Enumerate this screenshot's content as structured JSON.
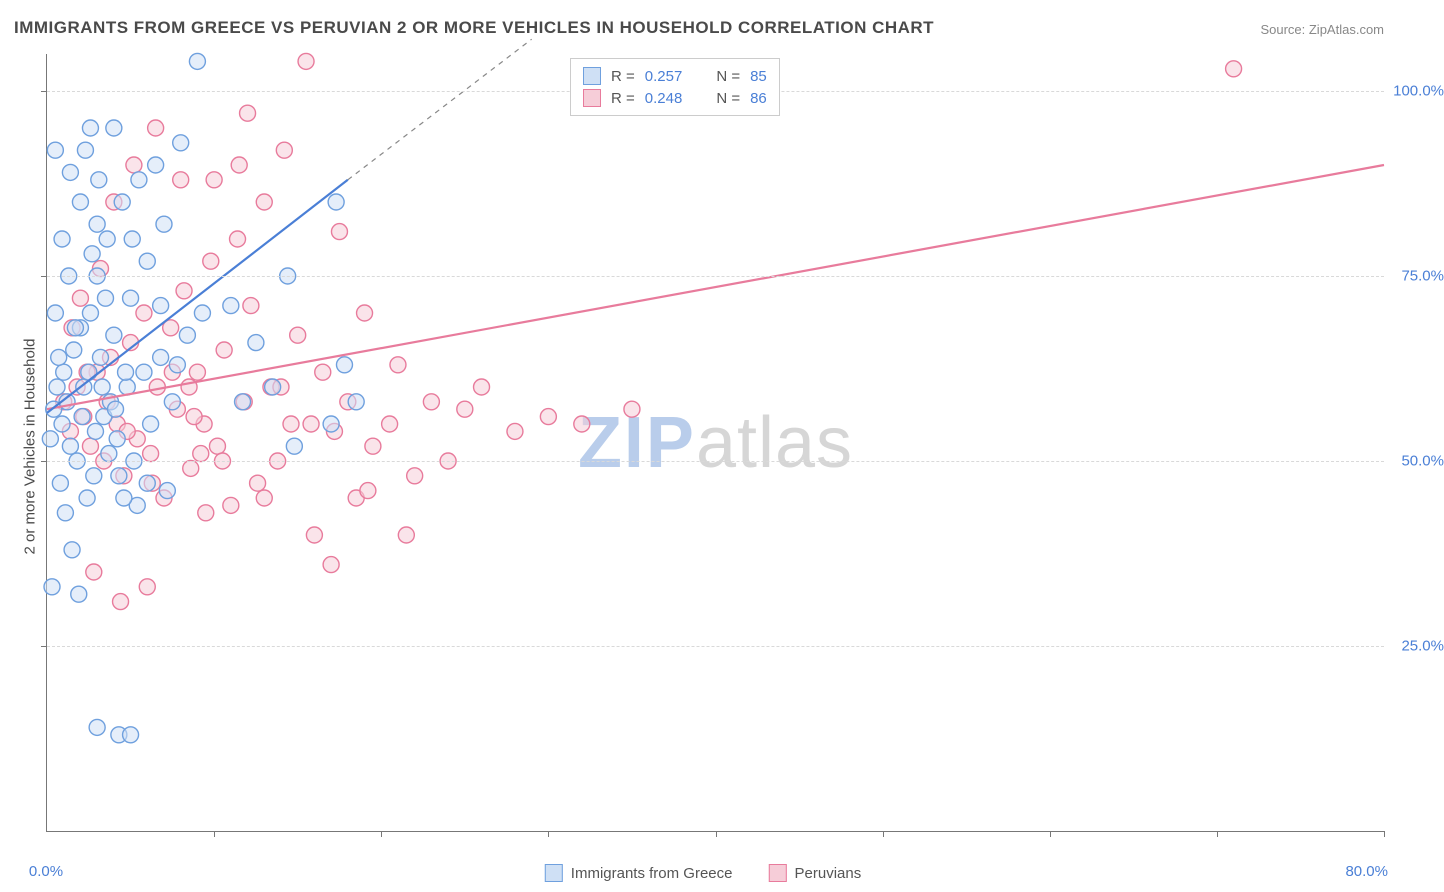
{
  "title": "IMMIGRANTS FROM GREECE VS PERUVIAN 2 OR MORE VEHICLES IN HOUSEHOLD CORRELATION CHART",
  "source": "Source: ZipAtlas.com",
  "yaxis_title": "2 or more Vehicles in Household",
  "watermark_zip": "ZIP",
  "watermark_atlas": "atlas",
  "chart": {
    "type": "scatter-correlation",
    "xlim": [
      0,
      80
    ],
    "ylim": [
      0,
      105
    ],
    "x_tick_positions": [
      0,
      10,
      20,
      30,
      40,
      50,
      60,
      70,
      80
    ],
    "y_gridlines": [
      25,
      50,
      75,
      100
    ],
    "x_gridlines": [],
    "y_tick_labels": [
      "25.0%",
      "50.0%",
      "75.0%",
      "100.0%"
    ],
    "x_label_min": "0.0%",
    "x_label_max": "80.0%",
    "background_color": "#ffffff",
    "grid_color": "#d9d9d9",
    "axis_color": "#777777",
    "label_color": "#4a7fd6",
    "title_color": "#4a4a4a",
    "title_fontsize": 17,
    "label_fontsize": 15,
    "marker_radius": 8,
    "marker_stroke_width": 1.4,
    "trend_line_width": 2.2,
    "series": {
      "greece": {
        "label": "Immigrants from Greece",
        "fill": "#cfe0f5",
        "fill_opacity": 0.55,
        "stroke": "#6fa0de",
        "R": "0.257",
        "N": "85",
        "trend": {
          "x1": 0,
          "y1": 56.5,
          "x2": 18,
          "y2": 88,
          "dash_to_x": 29,
          "dash_to_y": 107
        },
        "points": [
          [
            0.4,
            57
          ],
          [
            0.6,
            60
          ],
          [
            0.9,
            55
          ],
          [
            1.0,
            62
          ],
          [
            1.2,
            58
          ],
          [
            1.4,
            52
          ],
          [
            1.6,
            65
          ],
          [
            1.8,
            50
          ],
          [
            2.0,
            68
          ],
          [
            2.2,
            60
          ],
          [
            2.4,
            45
          ],
          [
            2.6,
            70
          ],
          [
            2.8,
            48
          ],
          [
            3.0,
            75
          ],
          [
            3.2,
            64
          ],
          [
            3.4,
            56
          ],
          [
            3.6,
            80
          ],
          [
            3.8,
            58
          ],
          [
            4.0,
            67
          ],
          [
            4.2,
            53
          ],
          [
            4.5,
            85
          ],
          [
            4.8,
            60
          ],
          [
            5.0,
            72
          ],
          [
            5.2,
            50
          ],
          [
            5.5,
            88
          ],
          [
            5.8,
            62
          ],
          [
            6.0,
            77
          ],
          [
            6.2,
            55
          ],
          [
            6.5,
            90
          ],
          [
            6.8,
            64
          ],
          [
            7.0,
            82
          ],
          [
            7.5,
            58
          ],
          [
            8.0,
            93
          ],
          [
            8.4,
            67
          ],
          [
            9.0,
            104
          ],
          [
            9.3,
            70
          ],
          [
            0.8,
            47
          ],
          [
            1.1,
            43
          ],
          [
            1.5,
            38
          ],
          [
            2.0,
            85
          ],
          [
            2.3,
            92
          ],
          [
            2.7,
            78
          ],
          [
            3.1,
            88
          ],
          [
            3.5,
            72
          ],
          [
            4.0,
            95
          ],
          [
            4.3,
            48
          ],
          [
            4.7,
            62
          ],
          [
            5.1,
            80
          ],
          [
            5.4,
            44
          ],
          [
            0.5,
            70
          ],
          [
            0.7,
            64
          ],
          [
            1.3,
            75
          ],
          [
            1.7,
            68
          ],
          [
            2.1,
            56
          ],
          [
            2.5,
            62
          ],
          [
            2.9,
            54
          ],
          [
            3.3,
            60
          ],
          [
            3.7,
            51
          ],
          [
            4.1,
            57
          ],
          [
            4.6,
            45
          ],
          [
            0.3,
            33
          ],
          [
            1.9,
            32
          ],
          [
            3.0,
            14
          ],
          [
            4.3,
            13
          ],
          [
            5.0,
            13
          ],
          [
            6.0,
            47
          ],
          [
            6.8,
            71
          ],
          [
            7.2,
            46
          ],
          [
            7.8,
            63
          ],
          [
            0.2,
            53
          ],
          [
            0.9,
            80
          ],
          [
            1.4,
            89
          ],
          [
            2.6,
            95
          ],
          [
            3.0,
            82
          ],
          [
            0.5,
            92
          ],
          [
            11.0,
            71
          ],
          [
            11.7,
            58
          ],
          [
            12.5,
            66
          ],
          [
            13.5,
            60
          ],
          [
            14.4,
            75
          ],
          [
            14.8,
            52
          ],
          [
            17.0,
            55
          ],
          [
            17.8,
            63
          ],
          [
            17.3,
            85
          ],
          [
            18.5,
            58
          ]
        ]
      },
      "peruvian": {
        "label": "Peruvians",
        "fill": "#f6cdd8",
        "fill_opacity": 0.55,
        "stroke": "#e87b9c",
        "R": "0.248",
        "N": "86",
        "trend": {
          "x1": 0,
          "y1": 57,
          "x2": 80,
          "y2": 90
        },
        "points": [
          [
            1.0,
            58
          ],
          [
            1.4,
            54
          ],
          [
            1.8,
            60
          ],
          [
            2.2,
            56
          ],
          [
            2.6,
            52
          ],
          [
            3.0,
            62
          ],
          [
            3.4,
            50
          ],
          [
            3.8,
            64
          ],
          [
            4.2,
            55
          ],
          [
            4.6,
            48
          ],
          [
            5.0,
            66
          ],
          [
            5.4,
            53
          ],
          [
            5.8,
            70
          ],
          [
            6.2,
            51
          ],
          [
            6.6,
            60
          ],
          [
            7.0,
            45
          ],
          [
            7.4,
            68
          ],
          [
            7.8,
            57
          ],
          [
            8.2,
            73
          ],
          [
            8.6,
            49
          ],
          [
            9.0,
            62
          ],
          [
            9.4,
            55
          ],
          [
            9.8,
            77
          ],
          [
            10.2,
            52
          ],
          [
            10.6,
            65
          ],
          [
            11.0,
            44
          ],
          [
            11.4,
            80
          ],
          [
            11.8,
            58
          ],
          [
            12.2,
            71
          ],
          [
            12.6,
            47
          ],
          [
            13.0,
            85
          ],
          [
            13.4,
            60
          ],
          [
            13.8,
            50
          ],
          [
            14.2,
            92
          ],
          [
            14.6,
            55
          ],
          [
            15.0,
            67
          ],
          [
            15.5,
            104
          ],
          [
            16.0,
            40
          ],
          [
            16.5,
            62
          ],
          [
            17.0,
            36
          ],
          [
            17.5,
            81
          ],
          [
            18.0,
            58
          ],
          [
            18.5,
            45
          ],
          [
            19.0,
            70
          ],
          [
            19.5,
            52
          ],
          [
            20.5,
            55
          ],
          [
            21.0,
            63
          ],
          [
            22.0,
            48
          ],
          [
            23.0,
            58
          ],
          [
            24.0,
            50
          ],
          [
            25.0,
            57
          ],
          [
            26.0,
            60
          ],
          [
            28.0,
            54
          ],
          [
            30.0,
            56
          ],
          [
            32.0,
            55
          ],
          [
            35.0,
            57
          ],
          [
            4.0,
            85
          ],
          [
            5.2,
            90
          ],
          [
            6.5,
            95
          ],
          [
            8.0,
            88
          ],
          [
            2.0,
            72
          ],
          [
            3.2,
            76
          ],
          [
            1.5,
            68
          ],
          [
            2.8,
            35
          ],
          [
            4.4,
            31
          ],
          [
            6.0,
            33
          ],
          [
            8.5,
            60
          ],
          [
            9.5,
            43
          ],
          [
            10.0,
            88
          ],
          [
            11.5,
            90
          ],
          [
            12.0,
            97
          ],
          [
            7.5,
            62
          ],
          [
            8.8,
            56
          ],
          [
            10.5,
            50
          ],
          [
            13.0,
            45
          ],
          [
            14.0,
            60
          ],
          [
            15.8,
            55
          ],
          [
            17.2,
            54
          ],
          [
            19.2,
            46
          ],
          [
            21.5,
            40
          ],
          [
            2.4,
            62
          ],
          [
            3.6,
            58
          ],
          [
            4.8,
            54
          ],
          [
            6.3,
            47
          ],
          [
            9.2,
            51
          ],
          [
            71.0,
            103
          ]
        ]
      }
    }
  },
  "legend_top": {
    "rows": [
      {
        "sw_fill": "#cfe0f5",
        "sw_stroke": "#6fa0de",
        "R_label": "R =",
        "R_val": "0.257",
        "N_label": "N =",
        "N_val": "85"
      },
      {
        "sw_fill": "#f6cdd8",
        "sw_stroke": "#e87b9c",
        "R_label": "R =",
        "R_val": "0.248",
        "N_label": "N =",
        "N_val": "86"
      }
    ]
  },
  "legend_bottom": {
    "items": [
      {
        "sw_fill": "#cfe0f5",
        "sw_stroke": "#6fa0de",
        "label": "Immigrants from Greece"
      },
      {
        "sw_fill": "#f6cdd8",
        "sw_stroke": "#e87b9c",
        "label": "Peruvians"
      }
    ]
  }
}
